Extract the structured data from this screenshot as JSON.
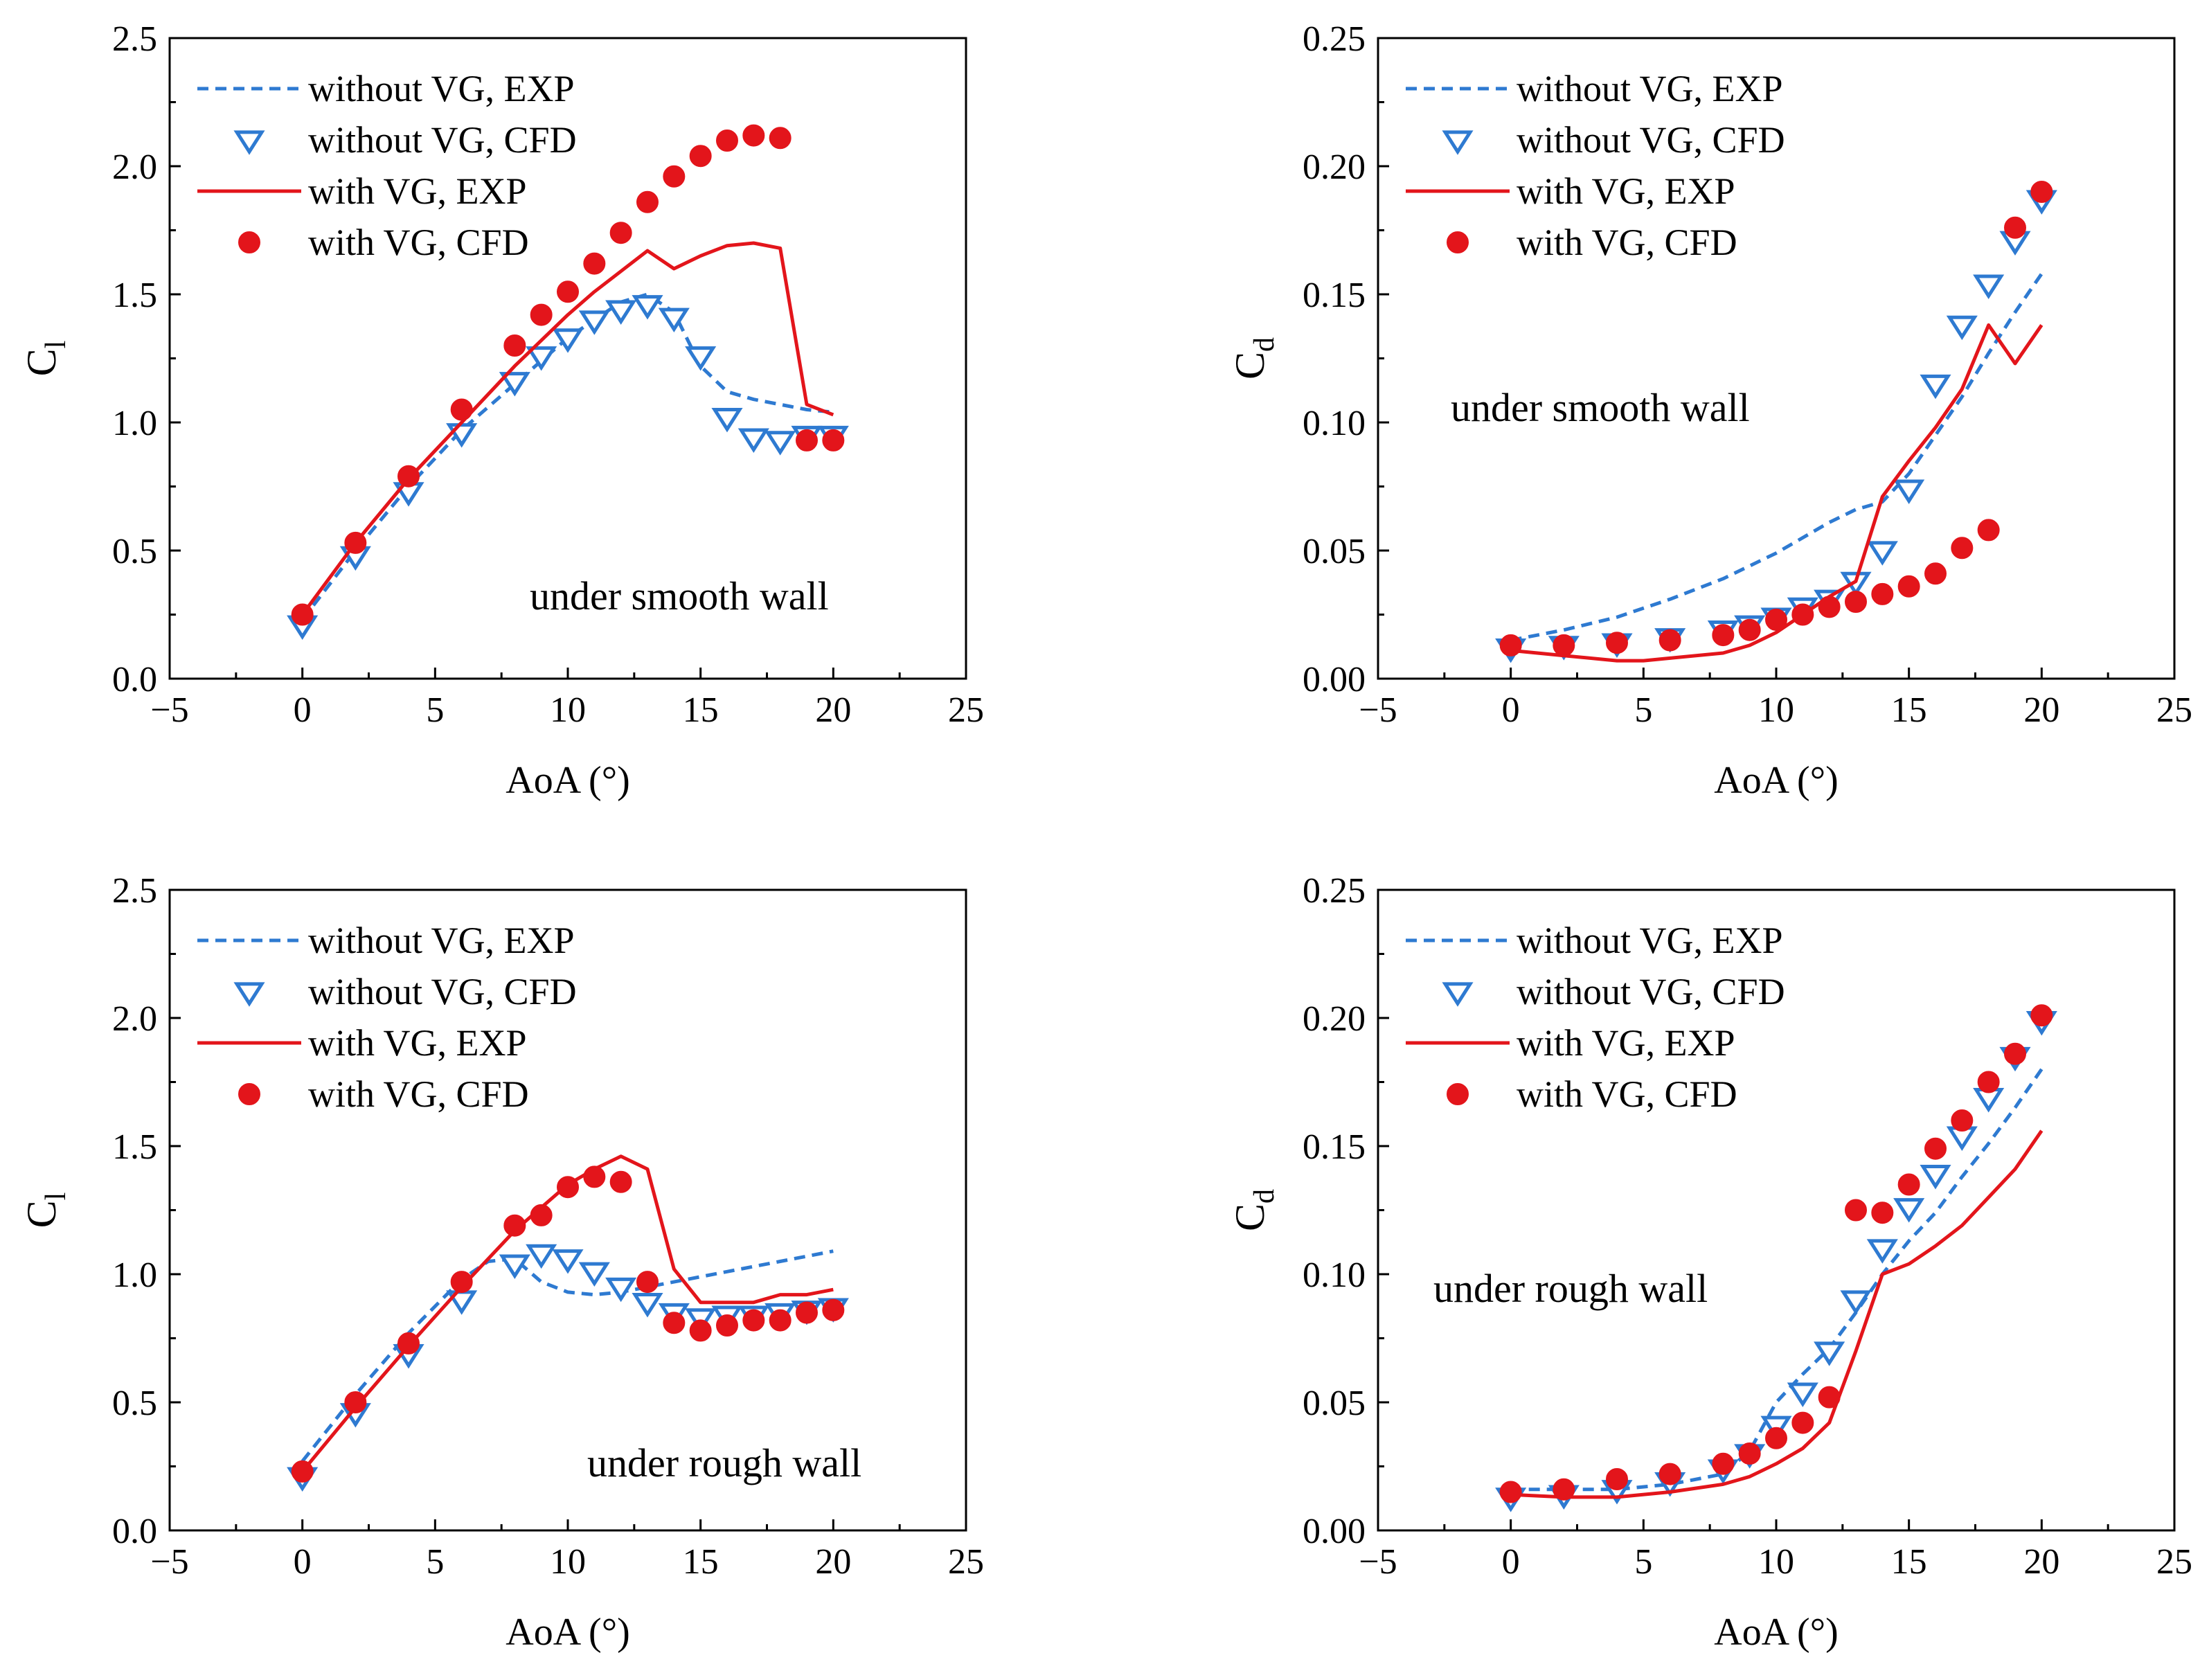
{
  "colors": {
    "without_vg": "#2e7ad1",
    "with_vg": "#e3151b",
    "axis": "#000000",
    "background": "#ffffff"
  },
  "chart_data": [
    {
      "id": "cl-smooth",
      "type": "line",
      "title": "",
      "annotation": "under smooth wall",
      "xlabel": "AoA (°)",
      "ylabel": {
        "main": "C",
        "sub": "l"
      },
      "xlim": [
        -5,
        25
      ],
      "ylim": [
        0,
        2.5
      ],
      "xticks": [
        -5,
        0,
        5,
        10,
        15,
        20,
        25
      ],
      "xtick_labels": [
        "−5",
        "0",
        "5",
        "10",
        "15",
        "20",
        "25"
      ],
      "yticks": [
        0,
        0.5,
        1,
        1.5,
        2,
        2.5
      ],
      "ytick_labels": [
        "0.0",
        "0.5",
        "1.0",
        "1.5",
        "2.0",
        "2.5"
      ],
      "legend": {
        "position": "top-left",
        "entries": [
          "without VG, EXP",
          "without VG, CFD",
          "with VG, EXP",
          "with VG, CFD"
        ]
      },
      "series": [
        {
          "name": "without VG, EXP",
          "style": "dashed",
          "color": "#2e7ad1",
          "x": [
            0,
            2,
            4,
            6,
            8,
            10,
            11,
            12,
            13,
            14,
            15,
            16,
            17,
            18,
            19,
            20
          ],
          "y": [
            0.23,
            0.5,
            0.75,
            0.97,
            1.15,
            1.33,
            1.4,
            1.47,
            1.5,
            1.43,
            1.22,
            1.12,
            1.09,
            1.07,
            1.05,
            1.04
          ]
        },
        {
          "name": "without VG, CFD",
          "style": "triangle-down",
          "color": "#2e7ad1",
          "x": [
            0,
            2,
            4,
            6,
            8,
            9,
            10,
            11,
            12,
            13,
            14,
            15,
            16,
            17,
            18,
            19,
            20
          ],
          "y": [
            0.21,
            0.48,
            0.73,
            0.96,
            1.16,
            1.26,
            1.33,
            1.4,
            1.44,
            1.46,
            1.41,
            1.26,
            1.02,
            0.94,
            0.93,
            0.95,
            0.95
          ]
        },
        {
          "name": "with VG, EXP",
          "style": "solid",
          "color": "#e3151b",
          "x": [
            0,
            2,
            4,
            6,
            8,
            10,
            11,
            12,
            13,
            14,
            15,
            16,
            17,
            18,
            19,
            20
          ],
          "y": [
            0.25,
            0.53,
            0.78,
            1.0,
            1.22,
            1.42,
            1.51,
            1.59,
            1.67,
            1.6,
            1.65,
            1.69,
            1.7,
            1.68,
            1.07,
            1.03
          ]
        },
        {
          "name": "with VG, CFD",
          "style": "circle",
          "color": "#e3151b",
          "x": [
            0,
            2,
            4,
            6,
            8,
            9,
            10,
            11,
            12,
            13,
            14,
            15,
            16,
            17,
            18,
            19,
            20
          ],
          "y": [
            0.25,
            0.53,
            0.79,
            1.05,
            1.3,
            1.42,
            1.51,
            1.62,
            1.74,
            1.86,
            1.96,
            2.04,
            2.1,
            2.12,
            2.11,
            0.93,
            0.93
          ]
        }
      ]
    },
    {
      "id": "cd-smooth",
      "type": "line",
      "title": "",
      "annotation": "under smooth wall",
      "xlabel": "AoA (°)",
      "ylabel": {
        "main": "C",
        "sub": "d"
      },
      "xlim": [
        -5,
        25
      ],
      "ylim": [
        0,
        0.25
      ],
      "xticks": [
        -5,
        0,
        5,
        10,
        15,
        20,
        25
      ],
      "xtick_labels": [
        "−5",
        "0",
        "5",
        "10",
        "15",
        "20",
        "25"
      ],
      "yticks": [
        0,
        0.05,
        0.1,
        0.15,
        0.2,
        0.25
      ],
      "ytick_labels": [
        "0.00",
        "0.05",
        "0.10",
        "0.15",
        "0.20",
        "0.25"
      ],
      "legend": {
        "position": "top-left",
        "entries": [
          "without VG, EXP",
          "without VG, CFD",
          "with VG, EXP",
          "with VG, CFD"
        ]
      },
      "series": [
        {
          "name": "without VG, EXP",
          "style": "dashed",
          "color": "#2e7ad1",
          "x": [
            0,
            2,
            4,
            6,
            8,
            10,
            12,
            13,
            14,
            15,
            16,
            17,
            18,
            19,
            20
          ],
          "y": [
            0.015,
            0.019,
            0.024,
            0.031,
            0.039,
            0.049,
            0.061,
            0.066,
            0.069,
            0.08,
            0.095,
            0.11,
            0.127,
            0.143,
            0.158
          ]
        },
        {
          "name": "without VG, CFD",
          "style": "triangle-down",
          "color": "#2e7ad1",
          "x": [
            0,
            2,
            4,
            6,
            8,
            9,
            10,
            11,
            12,
            13,
            14,
            15,
            16,
            17,
            18,
            19,
            20
          ],
          "y": [
            0.012,
            0.013,
            0.014,
            0.016,
            0.019,
            0.021,
            0.024,
            0.028,
            0.031,
            0.038,
            0.05,
            0.074,
            0.115,
            0.138,
            0.154,
            0.171,
            0.187
          ]
        },
        {
          "name": "with VG, EXP",
          "style": "solid",
          "color": "#e3151b",
          "x": [
            0,
            2,
            4,
            5,
            6,
            8,
            9,
            10,
            11,
            12,
            13,
            14,
            15,
            16,
            17,
            18,
            19,
            20
          ],
          "y": [
            0.011,
            0.009,
            0.007,
            0.007,
            0.008,
            0.01,
            0.013,
            0.018,
            0.025,
            0.032,
            0.038,
            0.071,
            0.085,
            0.098,
            0.113,
            0.138,
            0.123,
            0.138
          ]
        },
        {
          "name": "with VG, CFD",
          "style": "circle",
          "color": "#e3151b",
          "x": [
            0,
            2,
            4,
            6,
            8,
            9,
            10,
            11,
            12,
            13,
            14,
            15,
            16,
            17,
            18,
            19,
            20
          ],
          "y": [
            0.013,
            0.013,
            0.014,
            0.015,
            0.017,
            0.019,
            0.023,
            0.025,
            0.028,
            0.03,
            0.033,
            0.036,
            0.041,
            0.051,
            0.058,
            0.176,
            0.19
          ]
        }
      ]
    },
    {
      "id": "cl-rough",
      "type": "line",
      "title": "",
      "annotation": "under rough wall",
      "xlabel": "AoA (°)",
      "ylabel": {
        "main": "C",
        "sub": "l"
      },
      "xlim": [
        -5,
        25
      ],
      "ylim": [
        0,
        2.5
      ],
      "xticks": [
        -5,
        0,
        5,
        10,
        15,
        20,
        25
      ],
      "xtick_labels": [
        "−5",
        "0",
        "5",
        "10",
        "15",
        "20",
        "25"
      ],
      "yticks": [
        0,
        0.5,
        1,
        1.5,
        2,
        2.5
      ],
      "ytick_labels": [
        "0.0",
        "0.5",
        "1.0",
        "1.5",
        "2.0",
        "2.5"
      ],
      "legend": {
        "position": "top-left",
        "entries": [
          "without VG, EXP",
          "without VG, CFD",
          "with VG, EXP",
          "with VG, CFD"
        ]
      },
      "series": [
        {
          "name": "without VG, EXP",
          "style": "dashed",
          "color": "#2e7ad1",
          "x": [
            0,
            2,
            4,
            6,
            7,
            8,
            9,
            10,
            11,
            12,
            13,
            14,
            15,
            16,
            17,
            18,
            19,
            20
          ],
          "y": [
            0.27,
            0.53,
            0.77,
            0.98,
            1.05,
            1.06,
            0.97,
            0.93,
            0.92,
            0.93,
            0.95,
            0.97,
            0.99,
            1.01,
            1.03,
            1.05,
            1.07,
            1.09
          ]
        },
        {
          "name": "without VG, CFD",
          "style": "triangle-down",
          "color": "#2e7ad1",
          "x": [
            0,
            2,
            4,
            6,
            8,
            9,
            10,
            11,
            12,
            13,
            14,
            15,
            16,
            17,
            18,
            19,
            20
          ],
          "y": [
            0.21,
            0.46,
            0.69,
            0.9,
            1.04,
            1.08,
            1.06,
            1.01,
            0.95,
            0.89,
            0.85,
            0.83,
            0.84,
            0.84,
            0.85,
            0.86,
            0.87
          ]
        },
        {
          "name": "with VG, EXP",
          "style": "solid",
          "color": "#e3151b",
          "x": [
            0,
            2,
            4,
            6,
            8,
            10,
            11,
            12,
            13,
            14,
            15,
            16,
            17,
            18,
            19,
            20
          ],
          "y": [
            0.23,
            0.48,
            0.72,
            0.95,
            1.17,
            1.35,
            1.41,
            1.46,
            1.41,
            1.02,
            0.89,
            0.89,
            0.89,
            0.92,
            0.92,
            0.94
          ]
        },
        {
          "name": "with VG, CFD",
          "style": "circle",
          "color": "#e3151b",
          "x": [
            0,
            2,
            4,
            6,
            8,
            9,
            10,
            11,
            12,
            13,
            14,
            15,
            16,
            17,
            18,
            19,
            20
          ],
          "y": [
            0.23,
            0.5,
            0.73,
            0.97,
            1.19,
            1.23,
            1.34,
            1.38,
            1.36,
            0.97,
            0.81,
            0.78,
            0.8,
            0.82,
            0.82,
            0.85,
            0.86
          ]
        }
      ]
    },
    {
      "id": "cd-rough",
      "type": "line",
      "title": "",
      "annotation": "under rough wall",
      "xlabel": "AoA (°)",
      "ylabel": {
        "main": "C",
        "sub": "d"
      },
      "xlim": [
        -5,
        25
      ],
      "ylim": [
        0,
        0.25
      ],
      "xticks": [
        -5,
        0,
        5,
        10,
        15,
        20,
        25
      ],
      "xtick_labels": [
        "−5",
        "0",
        "5",
        "10",
        "15",
        "20",
        "25"
      ],
      "yticks": [
        0,
        0.05,
        0.1,
        0.15,
        0.2,
        0.25
      ],
      "ytick_labels": [
        "0.00",
        "0.05",
        "0.10",
        "0.15",
        "0.20",
        "0.25"
      ],
      "legend": {
        "position": "top-left",
        "entries": [
          "without VG, EXP",
          "without VG, CFD",
          "with VG, EXP",
          "with VG, CFD"
        ]
      },
      "series": [
        {
          "name": "without VG, EXP",
          "style": "dashed",
          "color": "#2e7ad1",
          "x": [
            0,
            2,
            4,
            6,
            8,
            9,
            10,
            11,
            12,
            13,
            14,
            15,
            16,
            17,
            18,
            19,
            20
          ],
          "y": [
            0.016,
            0.016,
            0.016,
            0.018,
            0.022,
            0.031,
            0.05,
            0.061,
            0.071,
            0.085,
            0.1,
            0.113,
            0.124,
            0.138,
            0.151,
            0.165,
            0.18
          ]
        },
        {
          "name": "without VG, CFD",
          "style": "triangle-down",
          "color": "#2e7ad1",
          "x": [
            0,
            2,
            4,
            6,
            8,
            9,
            10,
            11,
            12,
            13,
            14,
            15,
            16,
            17,
            18,
            19,
            20
          ],
          "y": [
            0.013,
            0.014,
            0.016,
            0.019,
            0.024,
            0.03,
            0.041,
            0.054,
            0.07,
            0.09,
            0.11,
            0.126,
            0.139,
            0.154,
            0.169,
            0.185,
            0.199
          ]
        },
        {
          "name": "with VG, EXP",
          "style": "solid",
          "color": "#e3151b",
          "x": [
            0,
            2,
            4,
            6,
            8,
            9,
            10,
            11,
            12,
            13,
            14,
            15,
            16,
            17,
            18,
            19,
            20
          ],
          "y": [
            0.014,
            0.013,
            0.013,
            0.015,
            0.018,
            0.021,
            0.026,
            0.032,
            0.042,
            0.07,
            0.1,
            0.104,
            0.111,
            0.119,
            0.13,
            0.141,
            0.156
          ]
        },
        {
          "name": "with VG, CFD",
          "style": "circle",
          "color": "#e3151b",
          "x": [
            0,
            2,
            4,
            6,
            8,
            9,
            10,
            11,
            12,
            13,
            14,
            15,
            16,
            17,
            18,
            19,
            20
          ],
          "y": [
            0.015,
            0.016,
            0.02,
            0.022,
            0.026,
            0.03,
            0.036,
            0.042,
            0.052,
            0.125,
            0.124,
            0.135,
            0.149,
            0.16,
            0.175,
            0.186,
            0.201
          ]
        }
      ]
    }
  ]
}
